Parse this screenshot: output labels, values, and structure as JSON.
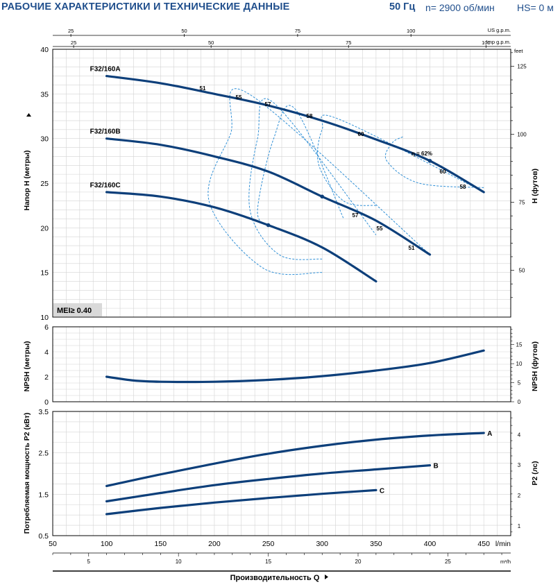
{
  "header": {
    "title": "РАБОЧИЕ ХАРАКТЕРИСТИКИ И ТЕХНИЧЕСКИЕ ДАННЫЕ",
    "frequency": "50 Гц",
    "speed": "n= 2900 об/мин",
    "hs": "HS= 0 м"
  },
  "colors": {
    "curve": "#0d3f7a",
    "efficiency": "#2f8fd6",
    "grid": "#d3d3d3",
    "title": "#1f4e8c"
  },
  "chart_data": [
    {
      "type": "line",
      "name_id": "head",
      "ylabel": "Напор H (метры)",
      "ylabel_right": "H (футов)",
      "ylim": [
        10,
        40
      ],
      "yticks": [
        10,
        15,
        20,
        25,
        30,
        35,
        40
      ],
      "yticks_right": {
        "unit": "feet",
        "values": [
          50,
          75,
          100,
          125
        ]
      },
      "top_axes": [
        {
          "unit": "US g.p.m.",
          "ticks": [
            25,
            50,
            75,
            100
          ]
        },
        {
          "unit": "Imp g.p.m.",
          "ticks": [
            25,
            50,
            75,
            100
          ]
        }
      ],
      "series": [
        {
          "name": "F32/160A",
          "x": [
            100,
            150,
            200,
            250,
            300,
            350,
            400,
            450
          ],
          "y": [
            37,
            36.2,
            35,
            33.7,
            32,
            29.9,
            27.5,
            24
          ]
        },
        {
          "name": "F32/160B",
          "x": [
            100,
            150,
            200,
            250,
            300,
            350,
            400
          ],
          "y": [
            30,
            29.3,
            28,
            26.3,
            23.5,
            20.8,
            17
          ]
        },
        {
          "name": "F32/160C",
          "x": [
            100,
            150,
            200,
            250,
            300,
            350
          ],
          "y": [
            24,
            23.5,
            22.3,
            20.3,
            17.8,
            14
          ]
        }
      ],
      "efficiency_contours": [
        {
          "label": "51",
          "x": [
            300,
            245,
            195,
            215,
            232,
            400
          ],
          "y": [
            15,
            15.5,
            23,
            30.5,
            35,
            17
          ]
        },
        {
          "label": "55",
          "x": [
            300,
            260,
            233,
            240,
            255,
            350
          ],
          "y": [
            16.5,
            17,
            22,
            30,
            34,
            19.2
          ]
        },
        {
          "label": "57",
          "x": [
            250,
            240,
            255,
            275,
            320
          ],
          "y": [
            20.2,
            22,
            30,
            33.3,
            21
          ]
        },
        {
          "label": "58",
          "x": [
            350,
            320,
            297,
            300,
            315,
            450
          ],
          "y": [
            22.5,
            23,
            27,
            31,
            32.2,
            24
          ]
        },
        {
          "label": "60",
          "x": [
            450,
            390,
            360,
            365,
            375
          ],
          "y": [
            24.5,
            25,
            27.5,
            29.5,
            30.2
          ]
        }
      ],
      "annotations": [
        "51",
        "55",
        "57",
        "58",
        "60",
        "η = 62%",
        "60",
        "58",
        "57",
        "55",
        "51",
        "MEI≥ 0.40"
      ]
    },
    {
      "type": "line",
      "name_id": "npsh",
      "ylabel": "NPSH (метры)",
      "ylabel_right": "NPSH (футов)",
      "ylim": [
        0,
        6
      ],
      "yticks": [
        0,
        2,
        4,
        6
      ],
      "yticks_right": [
        0,
        5,
        10,
        15
      ],
      "series": [
        {
          "x": [
            100,
            125,
            150,
            200,
            250,
            300,
            350,
            400,
            450
          ],
          "y": [
            2,
            1.7,
            1.6,
            1.6,
            1.75,
            2.05,
            2.5,
            3.1,
            4.1
          ]
        }
      ]
    },
    {
      "type": "line",
      "name_id": "power",
      "ylabel": "Потребляемая мощность P2 (кВт)",
      "ylabel_right": "P2 (лс)",
      "ylim": [
        0.5,
        3.5
      ],
      "yticks": [
        0.5,
        1.5,
        2.5,
        3.5
      ],
      "yticks_right": [
        1,
        2,
        3,
        4
      ],
      "xlabel": "Производительность Q",
      "xlim": [
        50,
        475
      ],
      "xticks": [
        50,
        100,
        150,
        200,
        250,
        300,
        350,
        400,
        450
      ],
      "xunit": "l/min",
      "xticks_secondary": {
        "unit": "m³/h",
        "values": [
          5,
          10,
          15,
          20,
          25
        ]
      },
      "series": [
        {
          "name": "A",
          "x": [
            100,
            150,
            200,
            250,
            300,
            350,
            400,
            450
          ],
          "y": [
            1.7,
            1.98,
            2.24,
            2.48,
            2.67,
            2.82,
            2.92,
            2.98
          ]
        },
        {
          "name": "B",
          "x": [
            100,
            150,
            200,
            250,
            300,
            350,
            400
          ],
          "y": [
            1.33,
            1.53,
            1.72,
            1.87,
            2,
            2.1,
            2.2
          ]
        },
        {
          "name": "C",
          "x": [
            100,
            150,
            200,
            250,
            300,
            350
          ],
          "y": [
            1.02,
            1.17,
            1.3,
            1.41,
            1.51,
            1.6
          ]
        }
      ]
    }
  ]
}
